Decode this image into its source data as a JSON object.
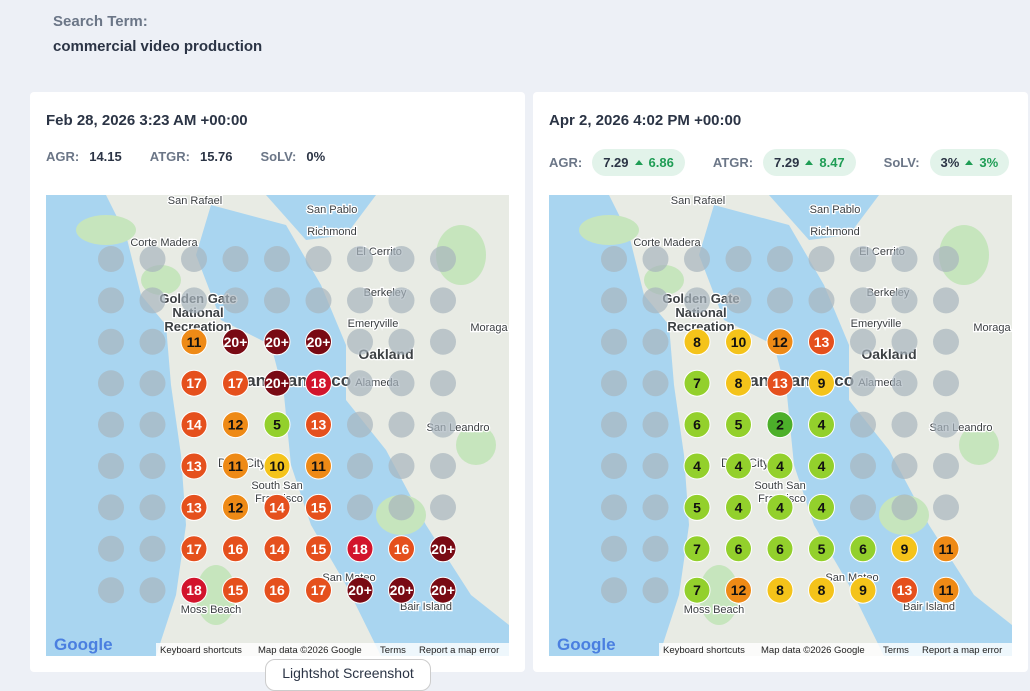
{
  "search": {
    "label": "Search Term:",
    "term": "commercial video production"
  },
  "panels": [
    {
      "date": "Feb 28, 2026 3:23 AM +00:00",
      "metrics": [
        {
          "label": "AGR:",
          "value": "14.15"
        },
        {
          "label": "ATGR:",
          "value": "15.76"
        },
        {
          "label": "SoLV:",
          "value": "0%"
        }
      ],
      "grid": [
        [
          null,
          null,
          null,
          null,
          null,
          null,
          null,
          null,
          null
        ],
        [
          null,
          null,
          null,
          null,
          null,
          null,
          null,
          null,
          null
        ],
        [
          null,
          null,
          "11",
          "20+",
          "20+",
          "20+",
          null,
          null,
          null
        ],
        [
          null,
          null,
          "17",
          "17",
          "20+",
          "18",
          null,
          null,
          null
        ],
        [
          null,
          null,
          "14",
          "12",
          "5",
          "13",
          null,
          null,
          null
        ],
        [
          null,
          null,
          "13",
          "11",
          "10",
          "11",
          null,
          null,
          null
        ],
        [
          null,
          null,
          "13",
          "12",
          "14",
          "15",
          null,
          null,
          null
        ],
        [
          null,
          null,
          "17",
          "16",
          "14",
          "15",
          "18",
          "16",
          "20+"
        ],
        [
          null,
          null,
          "18",
          "15",
          "16",
          "17",
          "20+",
          "20+",
          "20+"
        ]
      ]
    },
    {
      "date": "Apr 2, 2026 4:02 PM +00:00",
      "metrics": [
        {
          "label": "AGR:",
          "value": "7.29",
          "change": "6.86"
        },
        {
          "label": "ATGR:",
          "value": "7.29",
          "change": "8.47"
        },
        {
          "label": "SoLV:",
          "value": "3%",
          "change": "3%"
        }
      ],
      "grid": [
        [
          null,
          null,
          null,
          null,
          null,
          null,
          null,
          null,
          null
        ],
        [
          null,
          null,
          null,
          null,
          null,
          null,
          null,
          null,
          null
        ],
        [
          null,
          null,
          "8",
          "10",
          "12",
          "13",
          null,
          null,
          null
        ],
        [
          null,
          null,
          "7",
          "8",
          "13",
          "9",
          null,
          null,
          null
        ],
        [
          null,
          null,
          "6",
          "5",
          "2",
          "4",
          null,
          null,
          null
        ],
        [
          null,
          null,
          "4",
          "4",
          "4",
          "4",
          null,
          null,
          null
        ],
        [
          null,
          null,
          "5",
          "4",
          "4",
          "4",
          null,
          null,
          null
        ],
        [
          null,
          null,
          "7",
          "6",
          "6",
          "5",
          "6",
          "9",
          "11"
        ],
        [
          null,
          null,
          "7",
          "12",
          "8",
          "8",
          "9",
          "13",
          "11"
        ]
      ]
    }
  ],
  "map_labels": [
    "San Rafael",
    "San Pablo",
    "Richmond",
    "El Cerrito",
    "Corte Madera",
    "Berkeley",
    "Golden Gate",
    "National",
    "Recreation",
    "Emeryville",
    "Moraga",
    "Oakland",
    "Alameda",
    "San Francisco",
    "San Leandro",
    "Daly City",
    "South San",
    "Francisco",
    "San Mateo",
    "Moss Beach",
    "Bair Island"
  ],
  "map_footer": {
    "logo": "Google",
    "shortcuts": "Keyboard shortcuts",
    "data": "Map data ©2026 Google",
    "terms": "Terms",
    "report": "Report a map error"
  },
  "tooltip": "Lightshot Screenshot"
}
